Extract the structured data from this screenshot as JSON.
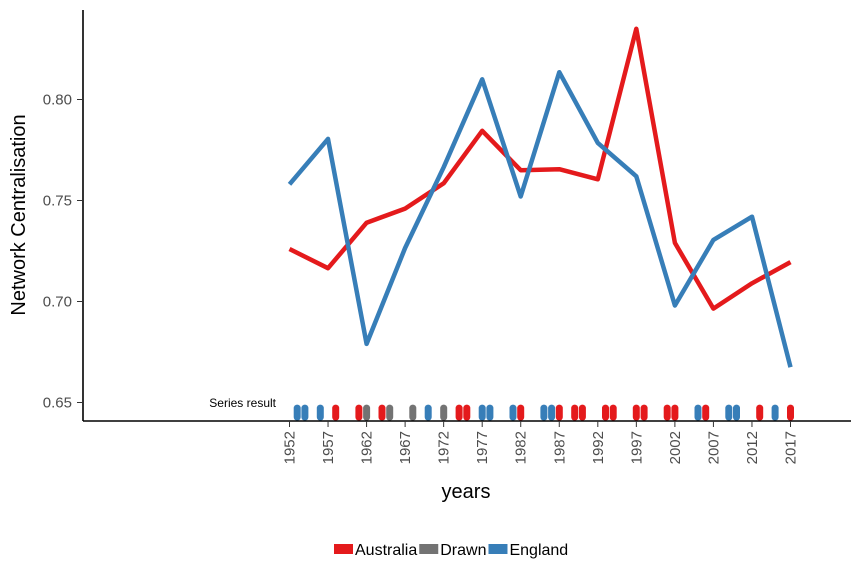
{
  "chart_data": {
    "type": "line",
    "xlabel": "years",
    "ylabel": "Network Centralisation",
    "ylim": [
      0.64,
      0.845
    ],
    "xlim": [
      1949.5,
      2021.5
    ],
    "y_ticks": [
      {
        "value": 0.65,
        "label": "0.65"
      },
      {
        "value": 0.7,
        "label": "0.70"
      },
      {
        "value": 0.75,
        "label": "0.75"
      },
      {
        "value": 0.8,
        "label": "0.80"
      }
    ],
    "x_ticks": [
      {
        "value": 1952,
        "label": "1952"
      },
      {
        "value": 1957,
        "label": "1957"
      },
      {
        "value": 1962,
        "label": "1962"
      },
      {
        "value": 1967,
        "label": "1967"
      },
      {
        "value": 1972,
        "label": "1972"
      },
      {
        "value": 1977,
        "label": "1977"
      },
      {
        "value": 1982,
        "label": "1982"
      },
      {
        "value": 1987,
        "label": "1987"
      },
      {
        "value": 1992,
        "label": "1992"
      },
      {
        "value": 1997,
        "label": "1997"
      },
      {
        "value": 2002,
        "label": "2002"
      },
      {
        "value": 2007,
        "label": "2007"
      },
      {
        "value": 2012,
        "label": "2012"
      },
      {
        "value": 2017,
        "label": "2017"
      }
    ],
    "grid": false,
    "legend": {
      "placement": "bottom",
      "entries": [
        {
          "name": "Australia",
          "color": "#e41a1c"
        },
        {
          "name": "Drawn",
          "color": "#737373"
        },
        {
          "name": "England",
          "color": "#377eb8"
        }
      ]
    },
    "series": [
      {
        "name": "Australia",
        "color": "#e41a1c",
        "x": [
          1952,
          1957,
          1962,
          1967,
          1972,
          1977,
          1982,
          1987,
          1992,
          1997,
          2002,
          2007,
          2012,
          2017
        ],
        "y": [
          0.726,
          0.7165,
          0.739,
          0.746,
          0.7585,
          0.7845,
          0.765,
          0.7655,
          0.7605,
          0.835,
          0.729,
          0.6965,
          0.709,
          0.7195
        ]
      },
      {
        "name": "England",
        "color": "#377eb8",
        "x": [
          1952,
          1957,
          1962,
          1967,
          1972,
          1977,
          1982,
          1987,
          1992,
          1997,
          2002,
          2007,
          2012,
          2017
        ],
        "y": [
          0.758,
          0.7805,
          0.679,
          0.7265,
          0.7665,
          0.81,
          0.752,
          0.8135,
          0.7785,
          0.762,
          0.698,
          0.7305,
          0.742,
          0.6675
        ]
      }
    ],
    "series_result": {
      "label": "Series result",
      "y_value": 0.645,
      "results": [
        {
          "year": 1953,
          "winner": "England"
        },
        {
          "year": 1954,
          "winner": "England"
        },
        {
          "year": 1956,
          "winner": "England"
        },
        {
          "year": 1958,
          "winner": "Australia"
        },
        {
          "year": 1961,
          "winner": "Australia"
        },
        {
          "year": 1962,
          "winner": "Drawn"
        },
        {
          "year": 1964,
          "winner": "Australia"
        },
        {
          "year": 1965,
          "winner": "Drawn"
        },
        {
          "year": 1968,
          "winner": "Drawn"
        },
        {
          "year": 1970,
          "winner": "England"
        },
        {
          "year": 1972,
          "winner": "Drawn"
        },
        {
          "year": 1974,
          "winner": "Australia"
        },
        {
          "year": 1975,
          "winner": "Australia"
        },
        {
          "year": 1977,
          "winner": "England"
        },
        {
          "year": 1978,
          "winner": "England"
        },
        {
          "year": 1981,
          "winner": "England"
        },
        {
          "year": 1982,
          "winner": "Australia"
        },
        {
          "year": 1985,
          "winner": "England"
        },
        {
          "year": 1986,
          "winner": "England"
        },
        {
          "year": 1987,
          "winner": "Australia"
        },
        {
          "year": 1989,
          "winner": "Australia"
        },
        {
          "year": 1990,
          "winner": "Australia"
        },
        {
          "year": 1993,
          "winner": "Australia"
        },
        {
          "year": 1994,
          "winner": "Australia"
        },
        {
          "year": 1997,
          "winner": "Australia"
        },
        {
          "year": 1998,
          "winner": "Australia"
        },
        {
          "year": 2001,
          "winner": "Australia"
        },
        {
          "year": 2002,
          "winner": "Australia"
        },
        {
          "year": 2005,
          "winner": "England"
        },
        {
          "year": 2006,
          "winner": "Australia"
        },
        {
          "year": 2009,
          "winner": "England"
        },
        {
          "year": 2010,
          "winner": "England"
        },
        {
          "year": 2013,
          "winner": "Australia"
        },
        {
          "year": 2015,
          "winner": "England"
        },
        {
          "year": 2017,
          "winner": "Australia"
        }
      ]
    }
  }
}
